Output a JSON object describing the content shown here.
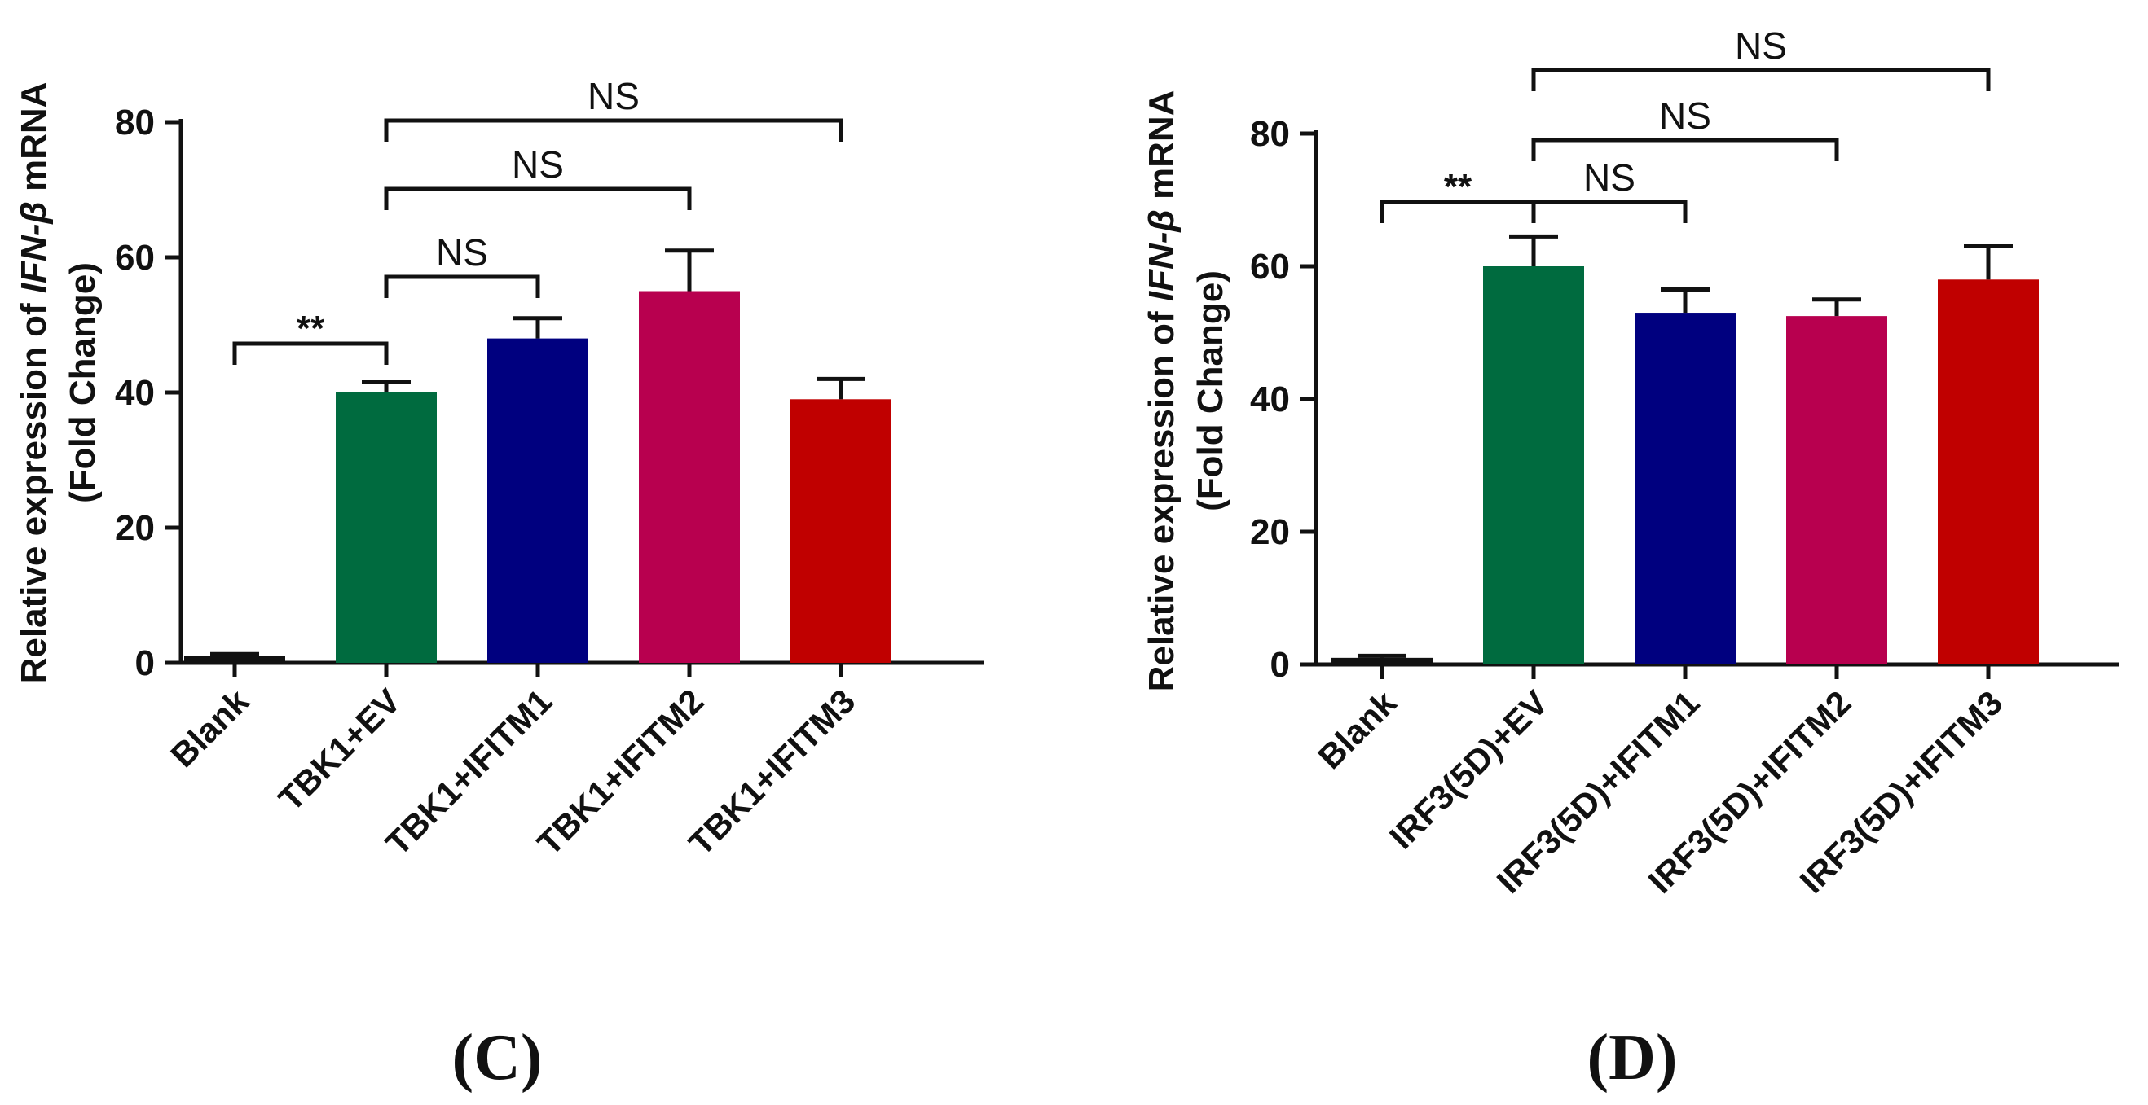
{
  "chart_data": [
    {
      "type": "bar",
      "panel_label": "(C)",
      "ylabel_prefix": "Relative expression of ",
      "ylabel_gene": "IFN-β",
      "ylabel_suffix": " mRNA",
      "ylabel_line2": "(Fold Change)",
      "ylim": [
        0,
        80
      ],
      "yticks": [
        "0",
        "20",
        "40",
        "60",
        "80"
      ],
      "categories": [
        "Blank",
        "TBK1+EV",
        "TBK1+IFITM1",
        "TBK1+IFITM2",
        "TBK1+IFITM3"
      ],
      "values": [
        1,
        40,
        48,
        55,
        39
      ],
      "errors": [
        0.3,
        1.5,
        3,
        6,
        3
      ],
      "colors": [
        "#111111",
        "#006b3f",
        "#00007f",
        "#b8004f",
        "#c00000"
      ],
      "comparisons": [
        {
          "from": 0,
          "to": 1,
          "label": "**",
          "level": 1
        },
        {
          "from": 1,
          "to": 2,
          "label": "NS",
          "level": 2
        },
        {
          "from": 1,
          "to": 3,
          "label": "NS",
          "level": 3
        },
        {
          "from": 1,
          "to": 4,
          "label": "NS",
          "level": 4
        }
      ]
    },
    {
      "type": "bar",
      "panel_label": "(D)",
      "ylabel_prefix": "Relative expression of ",
      "ylabel_gene": "IFN-β",
      "ylabel_suffix": " mRNA",
      "ylabel_line2": "(Fold Change)",
      "ylim": [
        0,
        80
      ],
      "yticks": [
        "0",
        "20",
        "40",
        "60",
        "80"
      ],
      "categories": [
        "Blank",
        "IRF3(5D)+EV",
        "IRF3(5D)+IFITM1",
        "IRF3(5D)+IFITM2",
        "IRF3(5D)+IFITM3"
      ],
      "values": [
        1,
        60,
        53,
        52.5,
        58
      ],
      "errors": [
        0.3,
        4.5,
        3.5,
        2.5,
        5
      ],
      "colors": [
        "#111111",
        "#006b3f",
        "#00007f",
        "#b8004f",
        "#c00000"
      ],
      "comparisons": [
        {
          "from": 0,
          "to": 1,
          "label": "**",
          "level": 1
        },
        {
          "from": 1,
          "to": 2,
          "label": "NS",
          "level": 1
        },
        {
          "from": 1,
          "to": 3,
          "label": "NS",
          "level": 2
        },
        {
          "from": 1,
          "to": 4,
          "label": "NS",
          "level": 3
        }
      ]
    }
  ]
}
